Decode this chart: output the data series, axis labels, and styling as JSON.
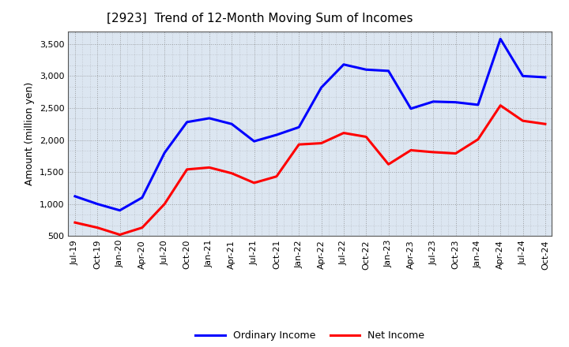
{
  "title": "[2923]  Trend of 12-Month Moving Sum of Incomes",
  "ylabel": "Amount (million yen)",
  "background_color": "#dce6f1",
  "plot_bg_color": "#dce6f1",
  "grid_color": "#7f7f7f",
  "x_labels": [
    "Jul-19",
    "Oct-19",
    "Jan-20",
    "Apr-20",
    "Jul-20",
    "Oct-20",
    "Jan-21",
    "Apr-21",
    "Jul-21",
    "Oct-21",
    "Jan-22",
    "Apr-22",
    "Jul-22",
    "Oct-22",
    "Jan-23",
    "Apr-23",
    "Jul-23",
    "Oct-23",
    "Jan-24",
    "Apr-24",
    "Jul-24",
    "Oct-24"
  ],
  "ordinary_income": [
    1120,
    1000,
    900,
    1100,
    1800,
    2280,
    2340,
    2250,
    1980,
    2080,
    2200,
    2820,
    3180,
    3100,
    3080,
    2490,
    2600,
    2590,
    2550,
    3580,
    3000,
    2980
  ],
  "net_income": [
    710,
    630,
    520,
    630,
    1000,
    1540,
    1570,
    1480,
    1330,
    1430,
    1930,
    1950,
    2110,
    2050,
    1620,
    1840,
    1810,
    1790,
    2010,
    2540,
    2300,
    2250
  ],
  "ordinary_income_color": "#0000ff",
  "net_income_color": "#ff0000",
  "ylim": [
    500,
    3700
  ],
  "yticks": [
    500,
    1000,
    1500,
    2000,
    2500,
    3000,
    3500
  ],
  "line_width": 2.2,
  "title_fontsize": 11,
  "axis_fontsize": 9,
  "legend_fontsize": 9,
  "tick_fontsize": 8
}
